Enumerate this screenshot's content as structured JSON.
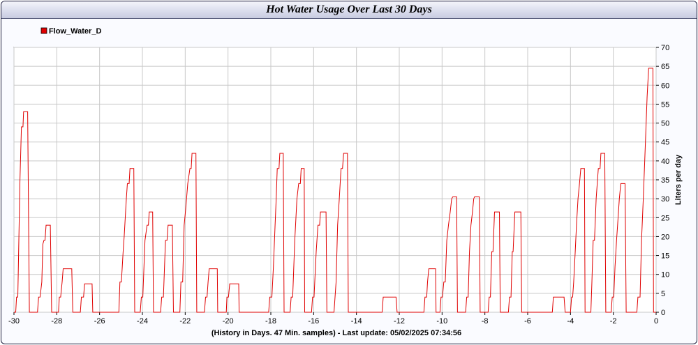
{
  "chart_data": {
    "type": "line",
    "title": "Hot Water Usage Over Last 30 Days",
    "xlabel": "(History in Days. 47 Min. samples) - Last update: 05/02/2025 07:34:56",
    "ylabel": "Liters per day",
    "xlim": [
      -30,
      0
    ],
    "ylim": [
      0,
      70
    ],
    "x_ticks": [
      -30,
      -28,
      -26,
      -24,
      -22,
      -20,
      -18,
      -16,
      -14,
      -12,
      -10,
      -8,
      -6,
      -4,
      -2,
      0
    ],
    "y_ticks": [
      0,
      5,
      10,
      15,
      20,
      25,
      30,
      35,
      40,
      45,
      50,
      55,
      60,
      65,
      70
    ],
    "grid": true,
    "legend_position": "top-left",
    "series": [
      {
        "name": "Flow_Water_D",
        "color": "#e00000",
        "points": [
          [
            -30,
            0
          ],
          [
            -29.92,
            0
          ],
          [
            -29.88,
            4
          ],
          [
            -29.82,
            4
          ],
          [
            -29.72,
            35
          ],
          [
            -29.65,
            49
          ],
          [
            -29.58,
            49
          ],
          [
            -29.55,
            53
          ],
          [
            -29.36,
            53
          ],
          [
            -29.28,
            0
          ],
          [
            -28.9,
            0
          ],
          [
            -28.85,
            4
          ],
          [
            -28.78,
            4
          ],
          [
            -28.7,
            8
          ],
          [
            -28.65,
            18
          ],
          [
            -28.6,
            19
          ],
          [
            -28.55,
            19
          ],
          [
            -28.5,
            23
          ],
          [
            -28.3,
            23
          ],
          [
            -28.24,
            0
          ],
          [
            -27.92,
            0
          ],
          [
            -27.88,
            4
          ],
          [
            -27.82,
            4
          ],
          [
            -27.75,
            8
          ],
          [
            -27.7,
            11.5
          ],
          [
            -27.3,
            11.5
          ],
          [
            -27.25,
            0
          ],
          [
            -26.9,
            0
          ],
          [
            -26.85,
            4
          ],
          [
            -26.75,
            4
          ],
          [
            -26.7,
            7.5
          ],
          [
            -26.35,
            7.5
          ],
          [
            -26.32,
            0
          ],
          [
            -25.1,
            0
          ],
          [
            -25.05,
            8
          ],
          [
            -24.98,
            8
          ],
          [
            -24.9,
            16
          ],
          [
            -24.85,
            20
          ],
          [
            -24.75,
            30
          ],
          [
            -24.7,
            34
          ],
          [
            -24.62,
            34
          ],
          [
            -24.58,
            38
          ],
          [
            -24.4,
            38
          ],
          [
            -24.36,
            0
          ],
          [
            -24.1,
            0
          ],
          [
            -24.05,
            4
          ],
          [
            -23.98,
            4
          ],
          [
            -23.88,
            19
          ],
          [
            -23.78,
            23
          ],
          [
            -23.72,
            23
          ],
          [
            -23.68,
            26.5
          ],
          [
            -23.52,
            26.5
          ],
          [
            -23.48,
            0
          ],
          [
            -23.15,
            0
          ],
          [
            -23.1,
            4
          ],
          [
            -23.02,
            4
          ],
          [
            -22.92,
            19
          ],
          [
            -22.85,
            19
          ],
          [
            -22.8,
            23
          ],
          [
            -22.6,
            23
          ],
          [
            -22.55,
            0
          ],
          [
            -22.25,
            0
          ],
          [
            -22.2,
            8
          ],
          [
            -22.12,
            8
          ],
          [
            -22.05,
            23
          ],
          [
            -21.98,
            27
          ],
          [
            -21.88,
            34
          ],
          [
            -21.78,
            38
          ],
          [
            -21.72,
            38
          ],
          [
            -21.68,
            42
          ],
          [
            -21.5,
            42
          ],
          [
            -21.46,
            0
          ],
          [
            -21.1,
            0
          ],
          [
            -21.05,
            4
          ],
          [
            -20.98,
            4
          ],
          [
            -20.93,
            8
          ],
          [
            -20.88,
            11.5
          ],
          [
            -20.5,
            11.5
          ],
          [
            -20.48,
            0
          ],
          [
            -20.08,
            0
          ],
          [
            -20.05,
            4
          ],
          [
            -19.98,
            4
          ],
          [
            -19.92,
            7.5
          ],
          [
            -19.5,
            7.5
          ],
          [
            -19.48,
            0
          ],
          [
            -18.1,
            0
          ],
          [
            -18.05,
            4
          ],
          [
            -17.95,
            4
          ],
          [
            -17.88,
            12
          ],
          [
            -17.8,
            23
          ],
          [
            -17.75,
            30
          ],
          [
            -17.7,
            38
          ],
          [
            -17.62,
            38
          ],
          [
            -17.58,
            42
          ],
          [
            -17.42,
            42
          ],
          [
            -17.38,
            0
          ],
          [
            -17.1,
            0
          ],
          [
            -17.05,
            4
          ],
          [
            -16.98,
            4
          ],
          [
            -16.88,
            19
          ],
          [
            -16.78,
            30
          ],
          [
            -16.7,
            34
          ],
          [
            -16.62,
            34
          ],
          [
            -16.58,
            38
          ],
          [
            -16.44,
            38
          ],
          [
            -16.42,
            0
          ],
          [
            -16.1,
            0
          ],
          [
            -16.05,
            4
          ],
          [
            -15.98,
            4
          ],
          [
            -15.88,
            16
          ],
          [
            -15.8,
            23
          ],
          [
            -15.72,
            23
          ],
          [
            -15.68,
            26.5
          ],
          [
            -15.42,
            26.5
          ],
          [
            -15.38,
            0
          ],
          [
            -15.05,
            0
          ],
          [
            -15.0,
            4
          ],
          [
            -14.95,
            8
          ],
          [
            -14.88,
            23
          ],
          [
            -14.8,
            30
          ],
          [
            -14.72,
            38
          ],
          [
            -14.65,
            38
          ],
          [
            -14.6,
            42
          ],
          [
            -14.42,
            42
          ],
          [
            -14.38,
            0
          ],
          [
            -12.8,
            0
          ],
          [
            -12.75,
            4
          ],
          [
            -12.15,
            4
          ],
          [
            -12.1,
            0
          ],
          [
            -10.85,
            0
          ],
          [
            -10.8,
            4
          ],
          [
            -10.72,
            4
          ],
          [
            -10.68,
            8
          ],
          [
            -10.62,
            11.5
          ],
          [
            -10.3,
            11.5
          ],
          [
            -10.28,
            0
          ],
          [
            -10.1,
            0
          ],
          [
            -10.05,
            4
          ],
          [
            -9.98,
            4
          ],
          [
            -9.92,
            8
          ],
          [
            -9.85,
            8
          ],
          [
            -9.78,
            19
          ],
          [
            -9.7,
            23
          ],
          [
            -9.62,
            26.5
          ],
          [
            -9.55,
            30
          ],
          [
            -9.5,
            30.5
          ],
          [
            -9.32,
            30.5
          ],
          [
            -9.28,
            0
          ],
          [
            -8.9,
            0
          ],
          [
            -8.85,
            4
          ],
          [
            -8.78,
            4
          ],
          [
            -8.72,
            16
          ],
          [
            -8.65,
            23
          ],
          [
            -8.58,
            26.5
          ],
          [
            -8.52,
            30
          ],
          [
            -8.48,
            30.5
          ],
          [
            -8.26,
            30.5
          ],
          [
            -8.22,
            0
          ],
          [
            -7.85,
            0
          ],
          [
            -7.8,
            4
          ],
          [
            -7.74,
            4
          ],
          [
            -7.68,
            16
          ],
          [
            -7.62,
            16
          ],
          [
            -7.55,
            26.5
          ],
          [
            -7.32,
            26.5
          ],
          [
            -7.28,
            0
          ],
          [
            -6.9,
            0
          ],
          [
            -6.85,
            4
          ],
          [
            -6.78,
            4
          ],
          [
            -6.72,
            16
          ],
          [
            -6.68,
            16
          ],
          [
            -6.6,
            26.5
          ],
          [
            -6.32,
            26.5
          ],
          [
            -6.28,
            0
          ],
          [
            -4.85,
            0
          ],
          [
            -4.8,
            4
          ],
          [
            -4.3,
            4
          ],
          [
            -4.25,
            0
          ],
          [
            -4.0,
            0
          ],
          [
            -3.95,
            4
          ],
          [
            -3.9,
            4
          ],
          [
            -3.85,
            8
          ],
          [
            -3.78,
            16
          ],
          [
            -3.72,
            23
          ],
          [
            -3.65,
            30
          ],
          [
            -3.58,
            34
          ],
          [
            -3.52,
            38
          ],
          [
            -3.35,
            38
          ],
          [
            -3.32,
            0
          ],
          [
            -3.05,
            0
          ],
          [
            -3.0,
            8
          ],
          [
            -2.94,
            19
          ],
          [
            -2.88,
            19
          ],
          [
            -2.8,
            30
          ],
          [
            -2.7,
            38
          ],
          [
            -2.62,
            38
          ],
          [
            -2.58,
            42
          ],
          [
            -2.4,
            42
          ],
          [
            -2.35,
            0
          ],
          [
            -2.1,
            0
          ],
          [
            -2.05,
            4
          ],
          [
            -1.98,
            4
          ],
          [
            -1.92,
            12
          ],
          [
            -1.85,
            19
          ],
          [
            -1.8,
            23
          ],
          [
            -1.72,
            30
          ],
          [
            -1.65,
            34
          ],
          [
            -1.45,
            34
          ],
          [
            -1.4,
            0
          ],
          [
            -0.9,
            0
          ],
          [
            -0.85,
            4
          ],
          [
            -0.75,
            4
          ],
          [
            -0.68,
            19
          ],
          [
            -0.6,
            30
          ],
          [
            -0.5,
            45
          ],
          [
            -0.42,
            57
          ],
          [
            -0.35,
            64.5
          ],
          [
            -0.15,
            64.5
          ],
          [
            -0.12,
            0
          ],
          [
            0,
            0
          ]
        ]
      }
    ]
  }
}
